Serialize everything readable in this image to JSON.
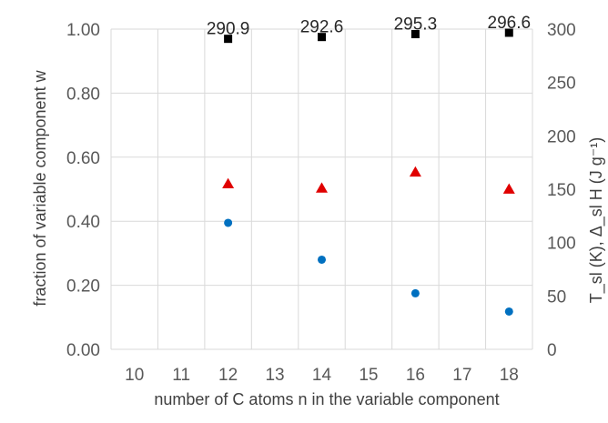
{
  "chart_data": {
    "type": "scatter",
    "title": "",
    "xlabel": "number of C atoms n in the variable component",
    "ylabel": "fraction of variable component w",
    "y2label": "T_sl (K), Δ_sl H (J g⁻¹)",
    "xlim": [
      9.5,
      18.5
    ],
    "ylim": [
      0,
      1
    ],
    "y2lim": [
      0,
      300
    ],
    "x_ticks": [
      "10",
      "11",
      "12",
      "13",
      "14",
      "15",
      "16",
      "17",
      "18"
    ],
    "y_ticks": [
      "0.00",
      "0.20",
      "0.40",
      "0.60",
      "0.80",
      "1.00"
    ],
    "y2_ticks": [
      "0",
      "50",
      "100",
      "150",
      "200",
      "250",
      "300"
    ],
    "grid": true,
    "legend": "none",
    "series": [
      {
        "axis": "left",
        "marker": "circle",
        "color": "#0070C0",
        "points": [
          {
            "x": 12,
            "y": 0.395
          },
          {
            "x": 14,
            "y": 0.28
          },
          {
            "x": 16,
            "y": 0.175
          },
          {
            "x": 18,
            "y": 0.118
          }
        ]
      },
      {
        "axis": "right",
        "marker": "triangle",
        "color": "#E00000",
        "points": [
          {
            "x": 12,
            "y": 155
          },
          {
            "x": 14,
            "y": 151
          },
          {
            "x": 16,
            "y": 166
          },
          {
            "x": 18,
            "y": 150
          }
        ]
      },
      {
        "axis": "right",
        "marker": "square",
        "color": "#000000",
        "points": [
          {
            "x": 12,
            "y": 290.9,
            "label": "290.9"
          },
          {
            "x": 14,
            "y": 292.6,
            "label": "292.6"
          },
          {
            "x": 16,
            "y": 295.3,
            "label": "295.3"
          },
          {
            "x": 18,
            "y": 296.6,
            "label": "296.6"
          }
        ]
      }
    ]
  }
}
